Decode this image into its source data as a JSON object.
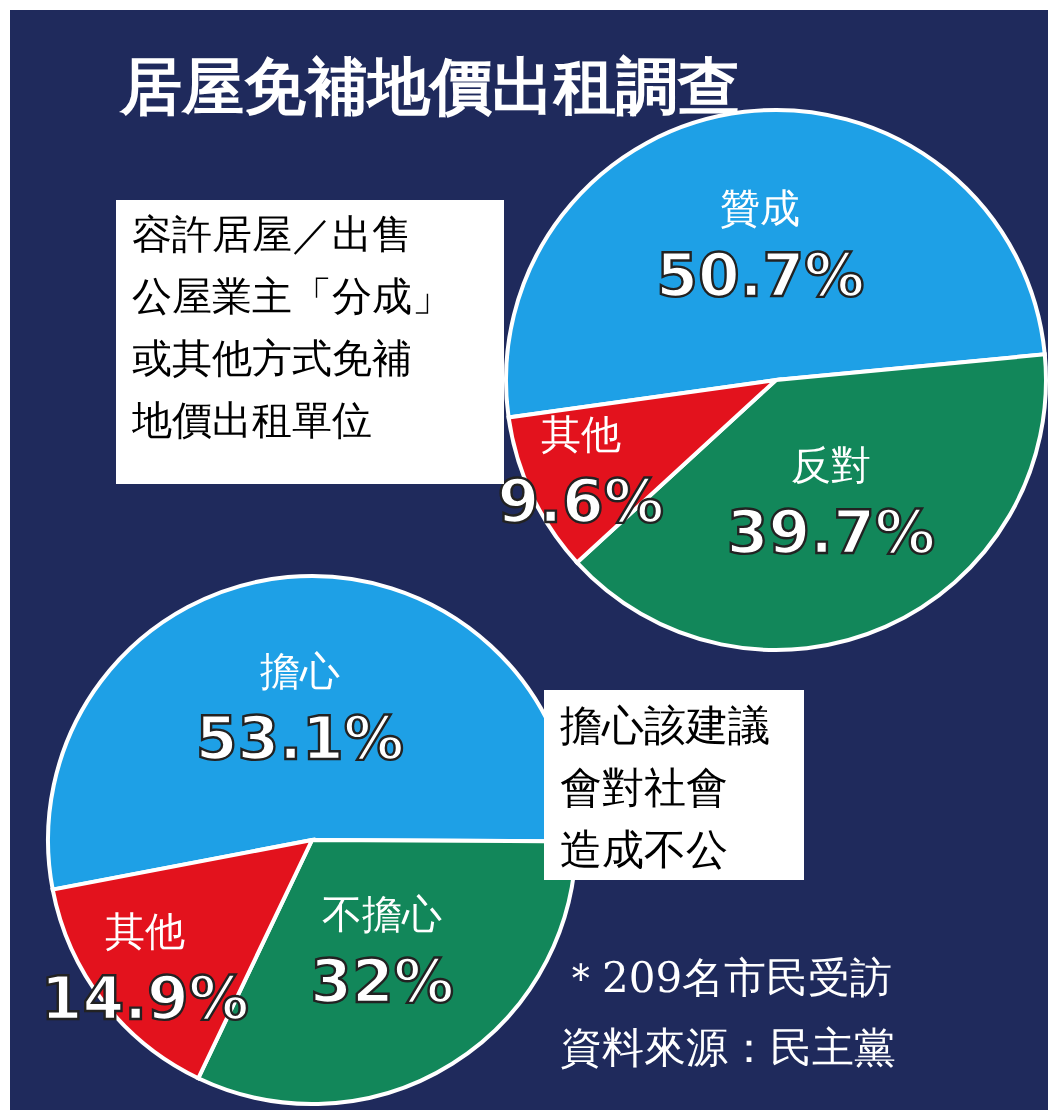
{
  "chart_data": [
    {
      "type": "pie",
      "title": "居屋免補地價出租調查",
      "subtitle": "容許居屋／出售公屋業主「分成」或其他方式免補地價出租單位",
      "categories": [
        "贊成",
        "反對",
        "其他"
      ],
      "values": [
        50.7,
        39.7,
        9.6
      ],
      "colors": [
        "#1ea0e6",
        "#12875a",
        "#e3121d"
      ],
      "value_labels": [
        "50.7%",
        "39.7%",
        "9.6%"
      ]
    },
    {
      "type": "pie",
      "subtitle": "擔心該建議會對社會造成不公",
      "categories": [
        "擔心",
        "不擔心",
        "其他"
      ],
      "values": [
        53.1,
        32,
        14.9
      ],
      "colors": [
        "#1ea0e6",
        "#12875a",
        "#e3121d"
      ],
      "value_labels": [
        "53.1%",
        "32%",
        "14.9%"
      ],
      "annotations": [
        "＊209名市民受訪",
        "資料來源：民主黨"
      ]
    }
  ]
}
